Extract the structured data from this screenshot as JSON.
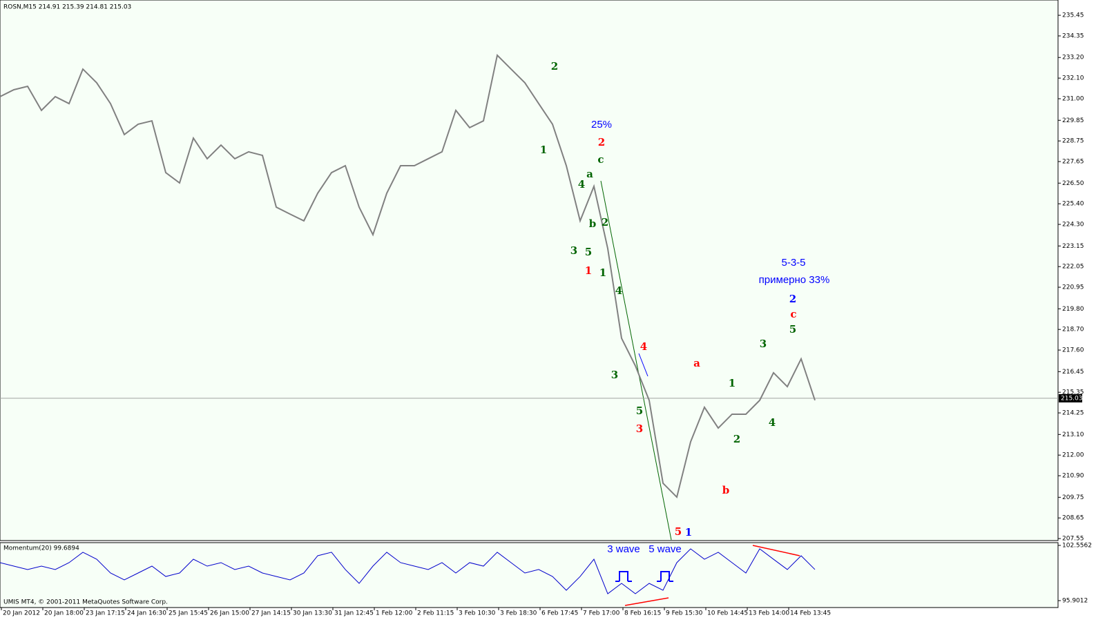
{
  "header": {
    "symbol_info": "ROSN,M15  214.91 215.39 214.81 215.03",
    "indicator_info": "Momentum(20) 99.6894",
    "copyright": "UMIS MT4, © 2001-2011 MetaQuotes Software Corp."
  },
  "chart_data": [
    {
      "type": "line",
      "name": "price",
      "x": [
        0,
        1,
        2,
        3,
        4,
        5,
        6,
        7,
        8,
        9,
        10,
        11,
        12,
        13,
        14,
        15,
        16,
        17,
        18,
        19,
        20,
        21,
        22,
        23,
        24,
        25,
        26,
        27,
        28,
        29,
        30,
        31,
        32,
        33,
        34,
        35,
        36,
        37,
        38,
        39,
        40,
        41,
        42,
        43,
        44,
        45,
        46,
        47,
        48,
        49,
        50,
        51,
        52,
        53,
        54,
        55,
        56,
        57,
        58,
        59
      ],
      "series": [
        {
          "color": "#808080",
          "values": [
            231.11,
            231.48,
            231.66,
            230.38,
            231.11,
            230.74,
            232.58,
            231.85,
            230.74,
            229.09,
            229.64,
            229.82,
            227.06,
            226.51,
            228.9,
            227.8,
            228.53,
            227.8,
            228.17,
            227.98,
            225.22,
            224.85,
            224.49,
            225.96,
            227.06,
            227.43,
            225.22,
            223.75,
            225.96,
            227.43,
            227.43,
            227.8,
            228.17,
            230.38,
            229.46,
            229.82,
            233.32,
            232.58,
            231.85,
            230.74,
            229.64,
            227.43,
            224.49,
            226.33,
            223.01,
            218.23,
            216.76,
            214.92,
            210.5,
            209.76,
            212.71,
            214.55,
            213.44,
            214.18,
            214.18,
            214.92,
            216.39,
            215.65,
            217.13,
            214.92
          ]
        }
      ],
      "xlim": [
        0,
        76.5
      ],
      "ylim": [
        207.48,
        236.08
      ],
      "yticks": [
        235.45,
        234.35,
        233.2,
        232.1,
        231,
        229.85,
        228.75,
        227.65,
        226.5,
        225.4,
        224.3,
        223.15,
        222.05,
        220.95,
        219.8,
        218.7,
        217.6,
        216.45,
        215.35,
        214.25,
        213.1,
        212,
        210.9,
        209.75,
        208.65,
        207.55
      ],
      "yticklabels": [
        "235.45",
        "234.35",
        "233.20",
        "232.10",
        "231.00",
        "229.85",
        "228.75",
        "227.65",
        "226.50",
        "225.40",
        "224.30",
        "223.15",
        "222.05",
        "220.95",
        "219.80",
        "218.70",
        "217.60",
        "216.45",
        "215.35",
        "214.25",
        "213.10",
        "212.00",
        "210.90",
        "209.75",
        "208.65",
        "207.55"
      ],
      "current_price": 215.03,
      "current_price_label": "215.03",
      "annotations": [
        {
          "text": "2",
          "color": "#006400"
        },
        {
          "text": "1",
          "color": "#006400"
        },
        {
          "text": "25%",
          "color": "#0000ff"
        },
        {
          "text": "2",
          "color": "#ff0000"
        },
        {
          "text": "c",
          "color": "#006400"
        },
        {
          "text": "a",
          "color": "#006400"
        },
        {
          "text": "4",
          "color": "#006400"
        },
        {
          "text": "b",
          "color": "#006400"
        },
        {
          "text": "2",
          "color": "#006400"
        },
        {
          "text": "3",
          "color": "#006400"
        },
        {
          "text": "5",
          "color": "#006400"
        },
        {
          "text": "1",
          "color": "#ff0000"
        },
        {
          "text": "1",
          "color": "#006400"
        },
        {
          "text": "4",
          "color": "#006400"
        },
        {
          "text": "4",
          "color": "#ff0000"
        },
        {
          "text": "3",
          "color": "#006400"
        },
        {
          "text": "5",
          "color": "#006400"
        },
        {
          "text": "3",
          "color": "#ff0000"
        },
        {
          "text": "5",
          "color": "#ff0000"
        },
        {
          "text": "1",
          "color": "#0000ff"
        },
        {
          "text": "a",
          "color": "#ff0000"
        },
        {
          "text": "b",
          "color": "#ff0000"
        },
        {
          "text": "1",
          "color": "#006400"
        },
        {
          "text": "2",
          "color": "#006400"
        },
        {
          "text": "3",
          "color": "#006400"
        },
        {
          "text": "4",
          "color": "#006400"
        },
        {
          "text": "5-3-5",
          "color": "#0000ff"
        },
        {
          "text": "примерно 33%",
          "color": "#0000ff"
        },
        {
          "text": "2",
          "color": "#0000ff"
        },
        {
          "text": "c",
          "color": "#ff0000"
        },
        {
          "text": "5",
          "color": "#006400"
        }
      ],
      "x_labels": [
        "20 Jan 2012",
        "20 Jan 18:00",
        "23 Jan 17:15",
        "24 Jan 16:30",
        "25 Jan 15:45",
        "26 Jan 15:00",
        "27 Jan 14:15",
        "30 Jan 13:30",
        "31 Jan 12:45",
        "1 Feb 12:00",
        "2 Feb 11:15",
        "3 Feb 10:30",
        "3 Feb 18:30",
        "6 Feb 17:45",
        "7 Feb 17:00",
        "8 Feb 16:15",
        "9 Feb 15:30",
        "10 Feb 14:45",
        "13 Feb 14:00",
        "14 Feb 13:45"
      ]
    },
    {
      "type": "line",
      "name": "Momentum(20)",
      "x": [
        0,
        1,
        2,
        3,
        4,
        5,
        6,
        7,
        8,
        9,
        10,
        11,
        12,
        13,
        14,
        15,
        16,
        17,
        18,
        19,
        20,
        21,
        22,
        23,
        24,
        25,
        26,
        27,
        28,
        29,
        30,
        31,
        32,
        33,
        34,
        35,
        36,
        37,
        38,
        39,
        40,
        41,
        42,
        43,
        44,
        45,
        46,
        47,
        48,
        49,
        50,
        51,
        52,
        53,
        54,
        55,
        56,
        57,
        58,
        59
      ],
      "series": [
        {
          "color": "#0000cc",
          "values": [
            100.48,
            100.06,
            99.65,
            100.06,
            99.65,
            100.48,
            101.73,
            100.89,
            99.23,
            98.4,
            99.23,
            100.06,
            98.81,
            99.23,
            100.89,
            100.06,
            100.48,
            99.65,
            100.06,
            99.23,
            98.81,
            98.4,
            99.23,
            101.31,
            101.73,
            99.65,
            97.98,
            100.06,
            101.73,
            100.48,
            100.06,
            99.65,
            100.48,
            99.23,
            100.48,
            100.06,
            101.73,
            100.48,
            99.23,
            99.65,
            98.81,
            97.15,
            98.81,
            100.89,
            96.73,
            97.98,
            96.73,
            97.98,
            97.15,
            100.48,
            102.14,
            100.89,
            101.73,
            100.48,
            99.23,
            102.14,
            100.89,
            99.65,
            101.31,
            99.65
          ]
        }
      ],
      "xlim": [
        0,
        76.5
      ],
      "ylim": [
        95.07,
        102.89
      ],
      "yticks": [
        102.5562,
        95.9012
      ],
      "annotations": [
        {
          "text": "3 wave",
          "color": "#0000ff"
        },
        {
          "text": "5 wave",
          "color": "#0000ff"
        }
      ]
    }
  ]
}
